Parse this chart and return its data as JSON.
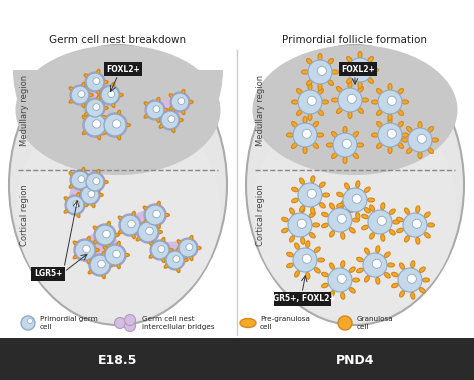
{
  "title_left": "Germ cell nest breakdown",
  "title_right": "Primordial follicle formation",
  "label_e185": "E18.5",
  "label_pnd4": "PND4",
  "label_cortical": "Cortical region",
  "label_medullary": "Medullary region",
  "label_lgr5_left": "LGR5+",
  "label_lgr5_right": "LGR5+, FOXL2+",
  "label_foxl2_left": "FOXL2+",
  "label_foxl2_right": "FOXL2+",
  "legend_items": [
    {
      "label": "Primordial germ\ncell",
      "color_fill": "#b8cce4",
      "color_edge": "#7a9abf",
      "shape": "circle"
    },
    {
      "label": "Germ cell nest\nintercellular bridges",
      "color_fill": "#c9b8d8",
      "color_edge": "#9b7db8",
      "shape": "blob"
    },
    {
      "label": "Pre-granulosa\ncell",
      "color_fill": "#f5a623",
      "color_edge": "#d4881a",
      "shape": "ellipse"
    },
    {
      "label": "Granulosa\ncell",
      "color_fill": "#f5a623",
      "color_edge": "#d4881a",
      "shape": "circle_filled"
    }
  ],
  "bg_color": "#f0f0f0",
  "cortical_color": "#e8e8e8",
  "medullary_color": "#c8c8c8",
  "ovary_outline": "#aaaaaa",
  "cell_blue_fill": "#c5d8ea",
  "cell_blue_edge": "#8baac8",
  "nucleus_color": "#ffffff",
  "bridge_fill": "#d4bde0",
  "bridge_edge": "#b09ac0",
  "granulosa_fill": "#f5a82a",
  "granulosa_edge": "#d4881a",
  "pregranulosa_fill": "#f5a82a",
  "pregranulosa_edge": "#d4881a",
  "black_label_bg": "#1a1a1a",
  "black_label_text": "#ffffff",
  "bottom_bar_color": "#2a2a2a",
  "bottom_bar_text": "#ffffff",
  "divider_color": "#888888"
}
